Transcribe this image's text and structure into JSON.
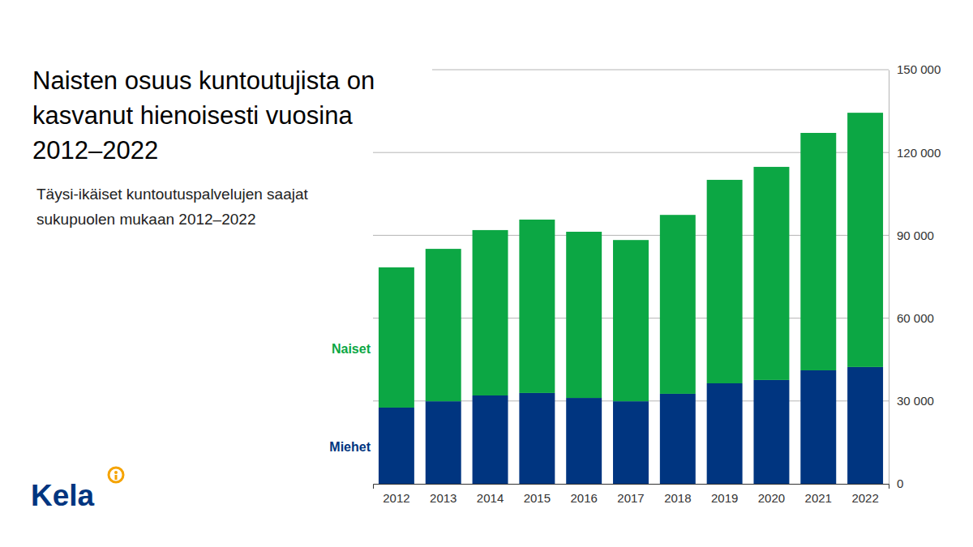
{
  "chart_data": {
    "type": "bar",
    "title": "Naisten osuus kuntoutujista on kasvanut hienoisesti vuosina 2012–2022",
    "subtitle": "Täysi-ikäiset kuntoutuspalvelujen saajat sukupuolen mukaan 2012–2022",
    "logo": "Kela",
    "categories": [
      "2012",
      "2013",
      "2014",
      "2015",
      "2016",
      "2017",
      "2018",
      "2019",
      "2020",
      "2021",
      "2022"
    ],
    "series": [
      {
        "name": "Miehet",
        "color": "#003580",
        "values": [
          27600,
          29900,
          32000,
          32900,
          31100,
          29900,
          32600,
          36400,
          37600,
          41100,
          42300
        ]
      },
      {
        "name": "Naiset",
        "color": "#0ca744",
        "values": [
          50800,
          55200,
          59900,
          62800,
          60200,
          58400,
          64800,
          73700,
          77200,
          86000,
          92100
        ]
      }
    ],
    "stacked": true,
    "grid": true,
    "ylim": [
      0,
      150000
    ],
    "yticks": [
      0,
      {
        "value": 30000,
        "label": "30 000"
      },
      {
        "value": 60000,
        "label": "60 000"
      },
      {
        "value": 90000,
        "label": "90 000"
      },
      {
        "value": 120000,
        "label": "120 000"
      },
      {
        "value": 150000,
        "label": "150 000"
      }
    ]
  }
}
